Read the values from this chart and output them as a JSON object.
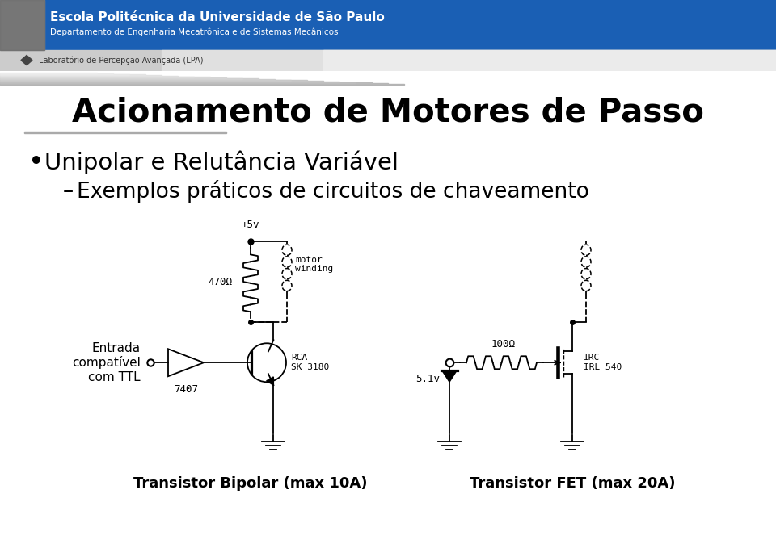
{
  "title": "Acionamento de Motores de Passo",
  "bullet1": "Unipolar e Relutância Variável",
  "bullet2": "Exemplos práticos de circuitos de chaveamento",
  "label_entrada": "Entrada\ncompatível\ncom TTL",
  "label_7407": "7407",
  "label_rca": "RCA\nSK 3180",
  "label_470": "470Ω",
  "label_100": "100Ω",
  "label_irc": "IRC\nIRL 540",
  "label_motor": "motor\nwinding",
  "label_5v": "+5v",
  "label_51v": "5.1v",
  "label_trans_bipolar": "Transistor Bipolar (max 10A)",
  "label_trans_fet": "Transistor FET (max 20A)",
  "header_blue": "#1a5fb4",
  "header_text1": "Escola Politécnica da Universidade de São Paulo",
  "header_text2": "Departamento de Engenharia Mecatrônica e de Sistemas Mecânicos",
  "header_text3": "Laboratório de Percepção Avançada (LPA)",
  "slide_bg": "#e8e8e8",
  "content_bg": "#ffffff",
  "fig_w": 9.6,
  "fig_h": 6.69,
  "dpi": 100
}
